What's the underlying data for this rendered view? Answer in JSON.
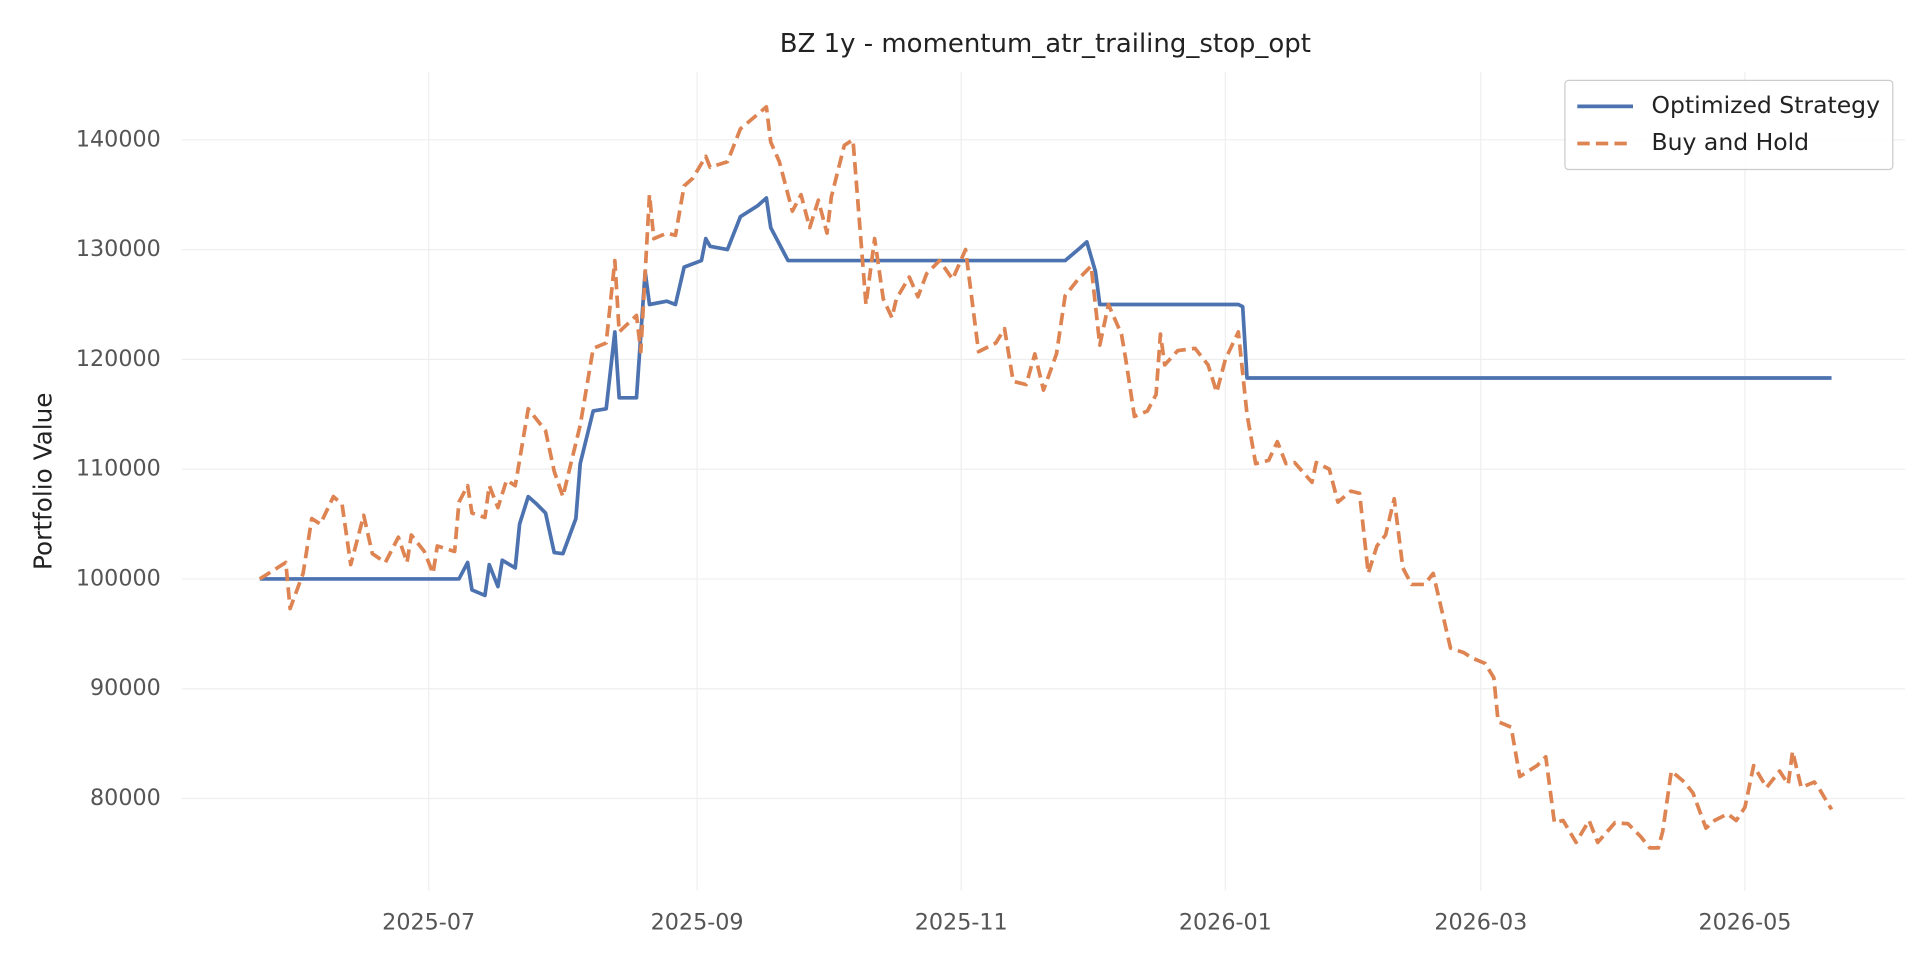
{
  "chart_data": {
    "type": "line",
    "title": "BZ 1y - momentum_atr_trailing_stop_opt",
    "y_label": "Portfolio Value",
    "xlim": [
      124,
      522
    ],
    "xticks": [
      {
        "value": 181,
        "label": "2025-07"
      },
      {
        "value": 243,
        "label": "2025-09"
      },
      {
        "value": 304,
        "label": "2025-11"
      },
      {
        "value": 365,
        "label": "2026-01"
      },
      {
        "value": 424,
        "label": "2026-03"
      },
      {
        "value": 485,
        "label": "2026-05"
      }
    ],
    "ylim": [
      71600,
      146200
    ],
    "yticks": [
      80000,
      90000,
      100000,
      110000,
      120000,
      130000,
      140000
    ],
    "grid": true,
    "legend": "upper right",
    "series": [
      {
        "name": "Optimized Strategy",
        "color": "#4c72b0",
        "dash": "solid",
        "x": [
          142,
          188,
          190,
          191,
          194,
          195,
          197,
          198,
          201,
          202,
          204,
          206,
          208,
          210,
          212,
          215,
          216,
          219,
          222,
          224,
          225,
          229,
          231,
          232,
          236,
          238,
          240,
          244,
          245,
          246,
          250,
          253,
          257,
          259,
          260,
          264,
          328,
          331,
          333,
          335,
          336,
          368,
          369,
          370,
          505
        ],
        "values": [
          100000,
          100000,
          101500,
          99000,
          98500,
          101300,
          99300,
          101700,
          101000,
          105000,
          107500,
          106800,
          106000,
          102400,
          102300,
          105500,
          110500,
          115300,
          115500,
          122500,
          116500,
          116500,
          128000,
          125000,
          125300,
          125000,
          128400,
          129000,
          131000,
          130300,
          130000,
          133000,
          134000,
          134700,
          132000,
          129000,
          129000,
          130000,
          130700,
          128000,
          125000,
          125000,
          124800,
          118300,
          118300
        ]
      },
      {
        "name": "Buy and Hold",
        "color": "#dd8452",
        "dash": "dashed",
        "x": [
          142,
          148,
          149,
          152,
          154,
          156,
          159,
          161,
          163,
          166,
          168,
          171,
          174,
          176,
          177,
          180,
          182,
          183,
          187,
          188,
          190,
          191,
          194,
          195,
          197,
          199,
          201,
          204,
          208,
          210,
          212,
          216,
          219,
          222,
          224,
          225,
          229,
          230,
          232,
          233,
          236,
          238,
          240,
          242,
          245,
          246,
          250,
          253,
          256,
          259,
          260,
          262,
          265,
          267,
          269,
          271,
          273,
          274,
          277,
          279,
          282,
          284,
          286,
          288,
          289,
          292,
          294,
          296,
          299,
          302,
          305,
          308,
          312,
          314,
          316,
          319,
          321,
          323,
          326,
          328,
          331,
          334,
          336,
          338,
          341,
          342,
          344,
          347,
          349,
          350,
          351,
          354,
          358,
          361,
          363,
          365,
          368,
          370,
          372,
          375,
          377,
          379,
          381,
          385,
          386,
          389,
          391,
          394,
          396,
          398,
          400,
          402,
          404,
          406,
          408,
          411,
          413,
          414,
          417,
          420,
          422,
          425,
          427,
          428,
          431,
          433,
          437,
          439,
          441,
          443,
          446,
          449,
          451,
          455,
          458,
          461,
          463,
          465,
          466,
          468,
          471,
          473,
          476,
          478,
          481,
          483,
          485,
          487,
          490,
          493,
          495,
          496,
          498,
          501,
          502,
          505
        ],
        "values": [
          100000,
          101500,
          97300,
          100500,
          105500,
          105000,
          107500,
          106800,
          101300,
          105800,
          102300,
          101500,
          103800,
          101500,
          104000,
          102500,
          100500,
          103000,
          102500,
          107000,
          108500,
          106000,
          105600,
          108500,
          106500,
          109000,
          108500,
          115500,
          113500,
          109800,
          107500,
          114000,
          121000,
          121500,
          129000,
          122500,
          124000,
          120700,
          135000,
          131000,
          131500,
          131300,
          135800,
          136500,
          138500,
          137500,
          138000,
          141000,
          142000,
          143000,
          139800,
          138000,
          133500,
          135000,
          132000,
          134500,
          131500,
          134800,
          139500,
          140000,
          125000,
          131000,
          125500,
          123800,
          125500,
          127500,
          125700,
          127800,
          129000,
          127300,
          130000,
          120700,
          121500,
          122800,
          118000,
          117700,
          120500,
          117200,
          120500,
          125800,
          127300,
          128500,
          121300,
          125000,
          122300,
          120000,
          114800,
          115300,
          116800,
          122300,
          119500,
          120800,
          121000,
          119500,
          117000,
          120000,
          122500,
          115000,
          110500,
          110800,
          112500,
          110500,
          110600,
          108800,
          110600,
          110000,
          107000,
          108000,
          107800,
          100500,
          103000,
          104000,
          107300,
          101000,
          99500,
          99500,
          100500,
          98800,
          93700,
          93300,
          92800,
          92300,
          91000,
          87000,
          86500,
          82000,
          83000,
          83800,
          77800,
          78000,
          76000,
          78000,
          76000,
          77800,
          77700,
          76500,
          75500,
          75500,
          77000,
          82500,
          81500,
          80500,
          77300,
          78000,
          78600,
          78000,
          79200,
          83000,
          81000,
          82500,
          81300,
          84300,
          81000,
          81500,
          81000,
          79000
        ]
      }
    ]
  }
}
